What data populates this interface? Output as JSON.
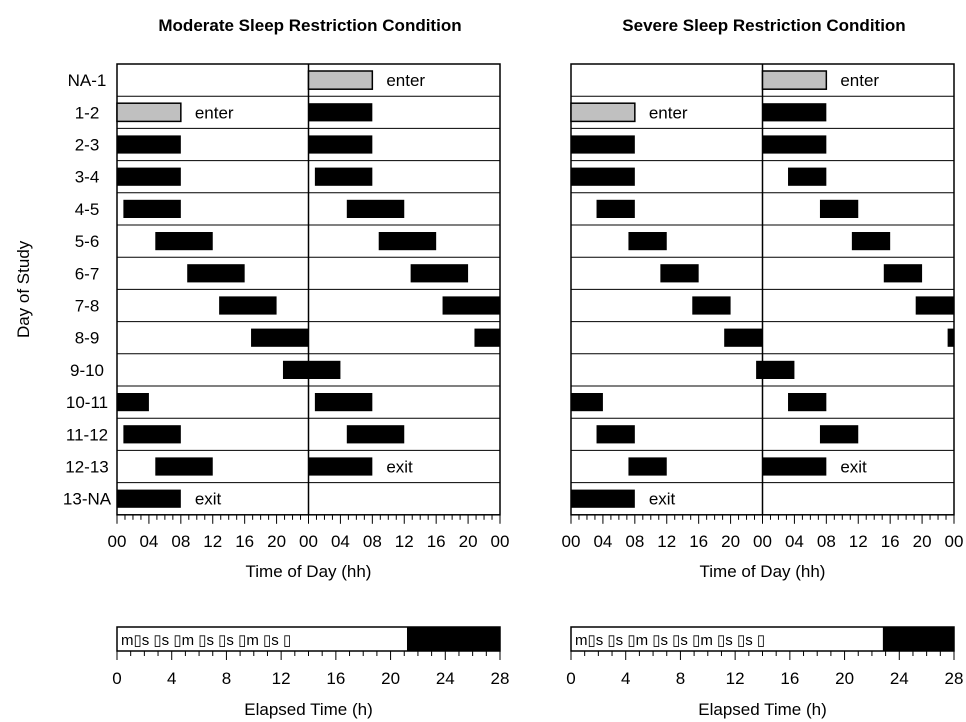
{
  "chart_data": {
    "type": "bar",
    "ylabel": "Day of Study",
    "day_labels": [
      "NA-1",
      "1-2",
      "2-3",
      "3-4",
      "4-5",
      "5-6",
      "6-7",
      "7-8",
      "8-9",
      "9-10",
      "10-11",
      "11-12",
      "12-13",
      "13-NA"
    ],
    "xlabel": "Time of Day (hh)",
    "tick_labels": [
      "00",
      "04",
      "08",
      "12",
      "16",
      "20",
      "00",
      "04",
      "08",
      "12",
      "16",
      "20",
      "00"
    ],
    "xlim": [
      0,
      48
    ],
    "elapsed": {
      "xlabel": "Elapsed Time (h)",
      "tick_labels": [
        "0",
        "4",
        "8",
        "12",
        "16",
        "20",
        "24",
        "28"
      ],
      "xlim": [
        0,
        28
      ]
    },
    "panels": [
      {
        "title": "Moderate Sleep Restriction Condition",
        "rows": [
          {
            "day": "NA-1",
            "bars": [
              {
                "start": 24,
                "end": 32,
                "kind": "gray"
              }
            ],
            "note": "enter"
          },
          {
            "day": "1-2",
            "bars": [
              {
                "start": 0,
                "end": 8,
                "kind": "gray"
              },
              {
                "start": 24,
                "end": 32,
                "kind": "black"
              }
            ],
            "note": "enter"
          },
          {
            "day": "2-3",
            "bars": [
              {
                "start": 0,
                "end": 8,
                "kind": "black"
              },
              {
                "start": 24,
                "end": 32,
                "kind": "black"
              }
            ]
          },
          {
            "day": "3-4",
            "bars": [
              {
                "start": 0,
                "end": 8,
                "kind": "black"
              },
              {
                "start": 24.8,
                "end": 32,
                "kind": "black"
              }
            ]
          },
          {
            "day": "4-5",
            "bars": [
              {
                "start": 0.8,
                "end": 8,
                "kind": "black"
              },
              {
                "start": 28.8,
                "end": 36,
                "kind": "black"
              }
            ]
          },
          {
            "day": "5-6",
            "bars": [
              {
                "start": 4.8,
                "end": 12,
                "kind": "black"
              },
              {
                "start": 32.8,
                "end": 40,
                "kind": "black"
              }
            ]
          },
          {
            "day": "6-7",
            "bars": [
              {
                "start": 8.8,
                "end": 16,
                "kind": "black"
              },
              {
                "start": 36.8,
                "end": 44,
                "kind": "black"
              }
            ]
          },
          {
            "day": "7-8",
            "bars": [
              {
                "start": 12.8,
                "end": 20,
                "kind": "black"
              },
              {
                "start": 40.8,
                "end": 48,
                "kind": "black"
              }
            ]
          },
          {
            "day": "8-9",
            "bars": [
              {
                "start": 16.8,
                "end": 24,
                "kind": "black"
              },
              {
                "start": 44.8,
                "end": 48,
                "kind": "black"
              }
            ]
          },
          {
            "day": "9-10",
            "bars": [
              {
                "start": 20.8,
                "end": 28,
                "kind": "black"
              }
            ]
          },
          {
            "day": "10-11",
            "bars": [
              {
                "start": 0,
                "end": 4,
                "kind": "black"
              },
              {
                "start": 24.8,
                "end": 32,
                "kind": "black"
              }
            ]
          },
          {
            "day": "11-12",
            "bars": [
              {
                "start": 0.8,
                "end": 8,
                "kind": "black"
              },
              {
                "start": 28.8,
                "end": 36,
                "kind": "black"
              }
            ]
          },
          {
            "day": "12-13",
            "bars": [
              {
                "start": 4.8,
                "end": 12,
                "kind": "black"
              },
              {
                "start": 24,
                "end": 32,
                "kind": "black"
              }
            ],
            "note": "exit"
          },
          {
            "day": "13-NA",
            "bars": [
              {
                "start": 0,
                "end": 8,
                "kind": "black"
              }
            ],
            "note": "exit"
          }
        ],
        "cycle": {
          "symbols": "m▯s ▯s ▯m ▯s ▯s ▯m ▯s ▯",
          "sleep": {
            "start": 21.2,
            "end": 28
          }
        }
      },
      {
        "title": "Severe Sleep Restriction Condition",
        "rows": [
          {
            "day": "NA-1",
            "bars": [
              {
                "start": 24,
                "end": 32,
                "kind": "gray"
              }
            ],
            "note": "enter"
          },
          {
            "day": "1-2",
            "bars": [
              {
                "start": 0,
                "end": 8,
                "kind": "gray"
              },
              {
                "start": 24,
                "end": 32,
                "kind": "black"
              }
            ],
            "note": "enter"
          },
          {
            "day": "2-3",
            "bars": [
              {
                "start": 0,
                "end": 8,
                "kind": "black"
              },
              {
                "start": 24,
                "end": 32,
                "kind": "black"
              }
            ]
          },
          {
            "day": "3-4",
            "bars": [
              {
                "start": 0,
                "end": 8,
                "kind": "black"
              },
              {
                "start": 27.2,
                "end": 32,
                "kind": "black"
              }
            ]
          },
          {
            "day": "4-5",
            "bars": [
              {
                "start": 3.2,
                "end": 8,
                "kind": "black"
              },
              {
                "start": 31.2,
                "end": 36,
                "kind": "black"
              }
            ]
          },
          {
            "day": "5-6",
            "bars": [
              {
                "start": 7.2,
                "end": 12,
                "kind": "black"
              },
              {
                "start": 35.2,
                "end": 40,
                "kind": "black"
              }
            ]
          },
          {
            "day": "6-7",
            "bars": [
              {
                "start": 11.2,
                "end": 16,
                "kind": "black"
              },
              {
                "start": 39.2,
                "end": 44,
                "kind": "black"
              }
            ]
          },
          {
            "day": "7-8",
            "bars": [
              {
                "start": 15.2,
                "end": 20,
                "kind": "black"
              },
              {
                "start": 43.2,
                "end": 48,
                "kind": "black"
              }
            ]
          },
          {
            "day": "8-9",
            "bars": [
              {
                "start": 19.2,
                "end": 24,
                "kind": "black"
              },
              {
                "start": 47.2,
                "end": 48,
                "kind": "black"
              }
            ]
          },
          {
            "day": "9-10",
            "bars": [
              {
                "start": 23.2,
                "end": 28,
                "kind": "black"
              }
            ]
          },
          {
            "day": "10-11",
            "bars": [
              {
                "start": 0,
                "end": 4,
                "kind": "black"
              },
              {
                "start": 27.2,
                "end": 32,
                "kind": "black"
              }
            ]
          },
          {
            "day": "11-12",
            "bars": [
              {
                "start": 3.2,
                "end": 8,
                "kind": "black"
              },
              {
                "start": 31.2,
                "end": 36,
                "kind": "black"
              }
            ]
          },
          {
            "day": "12-13",
            "bars": [
              {
                "start": 7.2,
                "end": 12,
                "kind": "black"
              },
              {
                "start": 24,
                "end": 32,
                "kind": "black"
              }
            ],
            "note": "exit"
          },
          {
            "day": "13-NA",
            "bars": [
              {
                "start": 0,
                "end": 8,
                "kind": "black"
              }
            ],
            "note": "exit"
          }
        ],
        "cycle": {
          "symbols": "m▯s ▯s ▯m ▯s ▯s ▯m ▯s ▯s ▯",
          "sleep": {
            "start": 22.8,
            "end": 28
          }
        }
      }
    ]
  },
  "colors": {
    "black_bar": "#000000",
    "gray_bar": "#c0c0c0",
    "frame": "#000000",
    "background": "#ffffff"
  }
}
